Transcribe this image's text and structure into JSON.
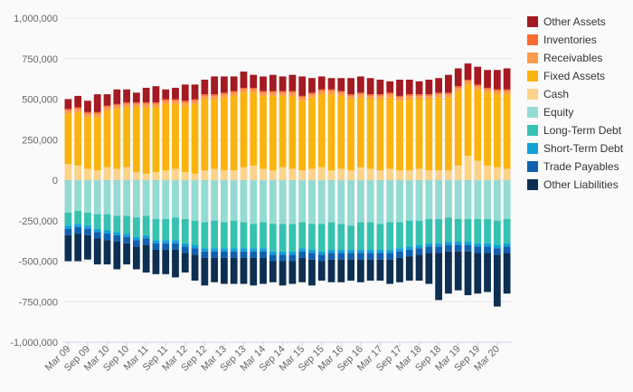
{
  "chart_data": {
    "type": "bar",
    "stacked": true,
    "ylim": [
      -1000000,
      1000000
    ],
    "y_ticks": [
      "1,000,000",
      "750,000",
      "500,000",
      "250,000",
      "0",
      "-250,000",
      "-500,000",
      "-750,000",
      "-1,000,000"
    ],
    "x_tick_labels": [
      "Mar 09",
      "Sep 09",
      "Mar 10",
      "Sep 10",
      "Mar 11",
      "Sep 11",
      "Mar 12",
      "Sep 12",
      "Mar 13",
      "Sep 13",
      "Mar 14",
      "Sep 14",
      "Mar 15",
      "Sep 15",
      "Mar 16",
      "Sep 16",
      "Mar 17",
      "Sep 17",
      "Mar 18",
      "Sep 18",
      "Mar 19",
      "Sep 19",
      "Mar 20"
    ],
    "categories": [
      "Mar 09",
      "Jun 09",
      "Sep 09",
      "Dec 09",
      "Mar 10",
      "Jun 10",
      "Sep 10",
      "Dec 10",
      "Mar 11",
      "Jun 11",
      "Sep 11",
      "Dec 11",
      "Mar 12",
      "Jun 12",
      "Sep 12",
      "Dec 12",
      "Mar 13",
      "Jun 13",
      "Sep 13",
      "Dec 13",
      "Mar 14",
      "Jun 14",
      "Sep 14",
      "Dec 14",
      "Mar 15",
      "Jun 15",
      "Sep 15",
      "Dec 15",
      "Mar 16",
      "Jun 16",
      "Sep 16",
      "Dec 16",
      "Mar 17",
      "Jun 17",
      "Sep 17",
      "Dec 17",
      "Mar 18",
      "Jun 18",
      "Sep 18",
      "Dec 18",
      "Mar 19",
      "Jun 19",
      "Sep 19",
      "Dec 19",
      "Mar 20",
      "Jun 20"
    ],
    "grid": true,
    "legend_position": "right",
    "series": [
      {
        "name": "Cash",
        "color": "#fcd38a",
        "side": "asset",
        "values": [
          100000,
          90000,
          70000,
          60000,
          80000,
          70000,
          80000,
          50000,
          40000,
          50000,
          60000,
          70000,
          50000,
          40000,
          60000,
          70000,
          60000,
          60000,
          80000,
          90000,
          70000,
          60000,
          80000,
          70000,
          60000,
          70000,
          80000,
          60000,
          70000,
          60000,
          80000,
          70000,
          60000,
          70000,
          60000,
          60000,
          70000,
          60000,
          60000,
          60000,
          90000,
          150000,
          120000,
          90000,
          80000,
          70000
        ]
      },
      {
        "name": "Fixed Assets",
        "color": "#fbb40e",
        "side": "asset",
        "values": [
          310000,
          330000,
          320000,
          330000,
          350000,
          370000,
          370000,
          400000,
          410000,
          400000,
          410000,
          400000,
          410000,
          430000,
          440000,
          430000,
          450000,
          460000,
          460000,
          450000,
          450000,
          460000,
          440000,
          450000,
          430000,
          440000,
          450000,
          470000,
          450000,
          440000,
          430000,
          430000,
          440000,
          440000,
          430000,
          440000,
          430000,
          440000,
          450000,
          450000,
          460000,
          440000,
          440000,
          450000,
          450000,
          460000
        ]
      },
      {
        "name": "Receivables",
        "color": "#fc9b4b",
        "side": "asset",
        "values": [
          20000,
          20000,
          20000,
          20000,
          20000,
          20000,
          20000,
          20000,
          20000,
          20000,
          20000,
          20000,
          20000,
          20000,
          20000,
          20000,
          20000,
          20000,
          20000,
          20000,
          20000,
          20000,
          20000,
          20000,
          20000,
          20000,
          20000,
          20000,
          20000,
          20000,
          20000,
          20000,
          20000,
          20000,
          20000,
          20000,
          20000,
          20000,
          20000,
          20000,
          20000,
          20000,
          20000,
          20000,
          20000,
          20000
        ]
      },
      {
        "name": "Inventories",
        "color": "#fa6a30",
        "side": "asset",
        "values": [
          10000,
          10000,
          10000,
          10000,
          10000,
          10000,
          10000,
          10000,
          10000,
          10000,
          10000,
          10000,
          10000,
          10000,
          10000,
          10000,
          10000,
          10000,
          10000,
          10000,
          10000,
          10000,
          10000,
          10000,
          10000,
          10000,
          10000,
          10000,
          10000,
          10000,
          10000,
          10000,
          10000,
          10000,
          10000,
          10000,
          10000,
          10000,
          10000,
          10000,
          10000,
          10000,
          10000,
          10000,
          10000,
          10000
        ]
      },
      {
        "name": "Other Assets",
        "color": "#a31a22",
        "side": "asset",
        "values": [
          60000,
          70000,
          70000,
          110000,
          70000,
          90000,
          80000,
          60000,
          90000,
          100000,
          60000,
          70000,
          100000,
          90000,
          90000,
          110000,
          100000,
          90000,
          100000,
          80000,
          90000,
          100000,
          90000,
          100000,
          120000,
          90000,
          80000,
          70000,
          80000,
          100000,
          100000,
          100000,
          90000,
          70000,
          100000,
          90000,
          80000,
          90000,
          90000,
          110000,
          110000,
          100000,
          110000,
          110000,
          120000,
          130000
        ]
      },
      {
        "name": "Equity",
        "color": "#93dbd3",
        "side": "liability",
        "values": [
          200000,
          190000,
          200000,
          210000,
          210000,
          220000,
          220000,
          230000,
          220000,
          240000,
          240000,
          230000,
          240000,
          250000,
          260000,
          250000,
          260000,
          250000,
          260000,
          270000,
          260000,
          270000,
          270000,
          270000,
          260000,
          270000,
          270000,
          260000,
          270000,
          280000,
          260000,
          260000,
          270000,
          260000,
          260000,
          250000,
          250000,
          240000,
          240000,
          230000,
          240000,
          240000,
          240000,
          240000,
          250000,
          240000
        ]
      },
      {
        "name": "Long-Term Debt",
        "color": "#36c2b0",
        "side": "liability",
        "values": [
          80000,
          80000,
          80000,
          90000,
          100000,
          100000,
          110000,
          120000,
          120000,
          130000,
          130000,
          140000,
          150000,
          150000,
          160000,
          170000,
          160000,
          170000,
          160000,
          150000,
          160000,
          170000,
          170000,
          170000,
          160000,
          160000,
          170000,
          170000,
          160000,
          150000,
          170000,
          170000,
          160000,
          170000,
          160000,
          160000,
          150000,
          150000,
          150000,
          150000,
          140000,
          140000,
          150000,
          150000,
          150000,
          150000
        ]
      },
      {
        "name": "Short-Term Debt",
        "color": "#11a1d6",
        "side": "liability",
        "values": [
          20000,
          20000,
          20000,
          20000,
          20000,
          20000,
          20000,
          20000,
          20000,
          20000,
          20000,
          20000,
          20000,
          20000,
          20000,
          20000,
          20000,
          20000,
          20000,
          20000,
          20000,
          20000,
          20000,
          20000,
          20000,
          20000,
          20000,
          20000,
          20000,
          20000,
          20000,
          20000,
          20000,
          20000,
          20000,
          20000,
          20000,
          20000,
          20000,
          20000,
          20000,
          20000,
          20000,
          20000,
          20000,
          20000
        ]
      },
      {
        "name": "Trade Payables",
        "color": "#1160b0",
        "side": "liability",
        "values": [
          40000,
          40000,
          40000,
          40000,
          40000,
          40000,
          40000,
          40000,
          40000,
          40000,
          40000,
          40000,
          40000,
          40000,
          40000,
          40000,
          40000,
          40000,
          40000,
          40000,
          40000,
          40000,
          40000,
          40000,
          40000,
          40000,
          40000,
          40000,
          40000,
          40000,
          40000,
          40000,
          40000,
          40000,
          40000,
          40000,
          40000,
          40000,
          40000,
          40000,
          40000,
          40000,
          40000,
          40000,
          40000,
          40000
        ]
      },
      {
        "name": "Other Liabilities",
        "color": "#0d2f52",
        "side": "liability",
        "values": [
          160000,
          170000,
          150000,
          160000,
          150000,
          170000,
          130000,
          140000,
          170000,
          150000,
          150000,
          170000,
          120000,
          160000,
          170000,
          150000,
          160000,
          160000,
          160000,
          170000,
          160000,
          130000,
          150000,
          140000,
          150000,
          160000,
          120000,
          140000,
          140000,
          130000,
          140000,
          130000,
          130000,
          150000,
          150000,
          150000,
          160000,
          190000,
          290000,
          260000,
          240000,
          270000,
          250000,
          240000,
          320000,
          250000
        ]
      }
    ]
  },
  "legend": [
    {
      "label": "Other Assets",
      "color": "#a31a22"
    },
    {
      "label": "Inventories",
      "color": "#fa6a30"
    },
    {
      "label": "Receivables",
      "color": "#fc9b4b"
    },
    {
      "label": "Fixed Assets",
      "color": "#fbb40e"
    },
    {
      "label": "Cash",
      "color": "#fcd38a"
    },
    {
      "label": "Equity",
      "color": "#93dbd3"
    },
    {
      "label": "Long-Term Debt",
      "color": "#36c2b0"
    },
    {
      "label": "Short-Term Debt",
      "color": "#11a1d6"
    },
    {
      "label": "Trade Payables",
      "color": "#1160b0"
    },
    {
      "label": "Other Liabilities",
      "color": "#0d2f52"
    }
  ]
}
